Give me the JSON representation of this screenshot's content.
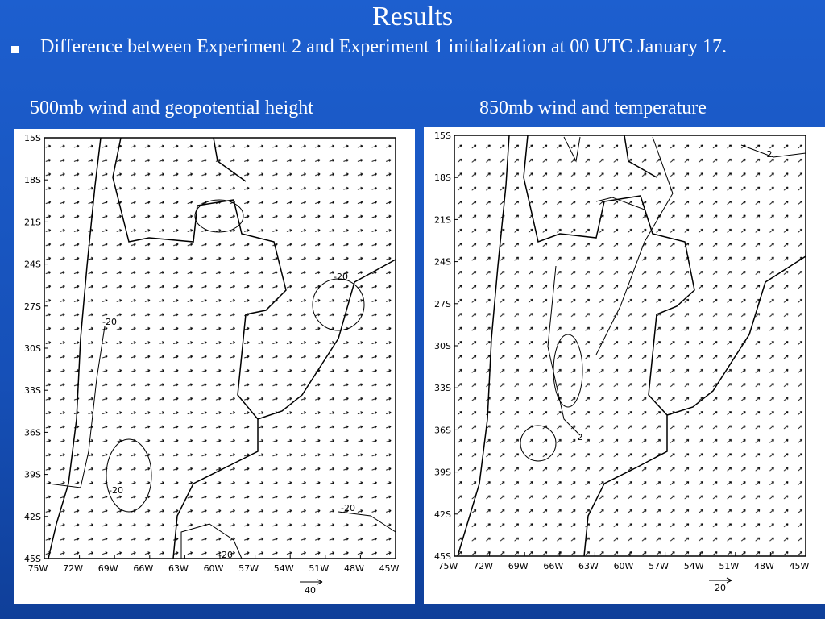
{
  "title": "Results",
  "bullet": "Difference between Experiment 2 and Experiment 1 initialization at 00 UTC January 17.",
  "panels": [
    {
      "caption": "500mb wind and geopotential height",
      "lat_labels": [
        "15S",
        "18S",
        "21S",
        "24S",
        "27S",
        "30S",
        "33S",
        "36S",
        "39S",
        "42S",
        "45S"
      ],
      "lon_labels": [
        "75W",
        "72W",
        "69W",
        "66W",
        "63W",
        "60W",
        "57W",
        "54W",
        "51W",
        "48W",
        "45W"
      ],
      "contour_labels": [
        "-20",
        "-20",
        "-20",
        "-20",
        "-20"
      ],
      "reference_vector": "40"
    },
    {
      "caption": "850mb wind and temperature",
      "lat_labels": [
        "15S",
        "18S",
        "21S",
        "24S",
        "27S",
        "30S",
        "33S",
        "36S",
        "39S",
        "42S",
        "45S"
      ],
      "lon_labels": [
        "75W",
        "72W",
        "69W",
        "66W",
        "63W",
        "60W",
        "57W",
        "54W",
        "51W",
        "48W",
        "45W"
      ],
      "contour_labels": [
        "2",
        "2"
      ],
      "reference_vector": "20"
    }
  ]
}
